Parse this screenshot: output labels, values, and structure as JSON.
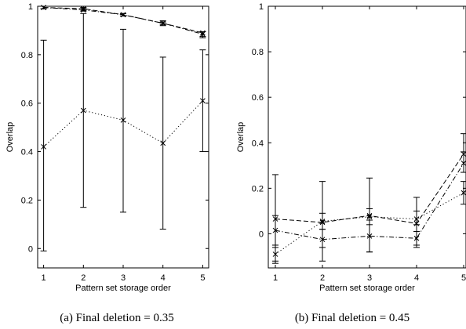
{
  "chart_data": [
    {
      "type": "line",
      "caption": "(a) Final deletion = 0.35",
      "xlabel": "Pattern set storage order",
      "ylabel": "Overlap",
      "xlim": [
        0.85,
        5.15
      ],
      "ylim": [
        -0.08,
        1.0
      ],
      "xticks": [
        1,
        2,
        3,
        4,
        5
      ],
      "yticks": [
        0,
        0.2,
        0.4,
        0.6,
        0.8,
        1
      ],
      "ytick_labels": [
        "0",
        "0.2",
        "0.4",
        "0.6",
        "0.8",
        "1"
      ],
      "grid": false,
      "x": [
        1,
        2,
        3,
        4,
        5
      ],
      "series": [
        {
          "style": "dotted",
          "marker": "x",
          "values": [
            0.42,
            0.57,
            0.53,
            0.435,
            0.61
          ],
          "err_low": [
            -0.01,
            0.17,
            0.15,
            0.08,
            0.4
          ],
          "err_high": [
            0.86,
            0.97,
            0.905,
            0.79,
            0.82
          ]
        },
        {
          "style": "dashed",
          "marker": "x",
          "values": [
            0.995,
            0.99,
            0.965,
            0.93,
            0.89
          ],
          "err_low": [
            0.99,
            0.985,
            0.96,
            0.92,
            0.875
          ],
          "err_high": [
            1.0,
            0.995,
            0.97,
            0.94,
            0.895
          ]
        },
        {
          "style": "dashdot",
          "marker": "x",
          "values": [
            0.995,
            0.985,
            0.965,
            0.93,
            0.885
          ],
          "err_low": [
            0.99,
            0.98,
            0.96,
            0.925,
            0.87
          ],
          "err_high": [
            1.0,
            0.99,
            0.97,
            0.935,
            0.895
          ]
        }
      ]
    },
    {
      "type": "line",
      "caption": "(b) Final deletion = 0.45",
      "xlabel": "Pattern set storage order",
      "ylabel": "Overlap",
      "xlim": [
        0.85,
        5.05
      ],
      "ylim": [
        -0.15,
        1.0
      ],
      "xticks": [
        1,
        2,
        3,
        4,
        5
      ],
      "yticks": [
        0,
        0.2,
        0.4,
        0.6,
        0.8,
        1
      ],
      "ytick_labels": [
        "0",
        "0.2",
        "0.4",
        "0.6",
        "0.8",
        "1"
      ],
      "grid": false,
      "x": [
        1,
        2,
        3,
        4,
        5
      ],
      "series": [
        {
          "style": "dashed",
          "marker": "x",
          "values": [
            0.065,
            0.05,
            0.08,
            0.045,
            0.35
          ],
          "err_low": [
            -0.13,
            -0.12,
            -0.08,
            -0.06,
            0.27
          ],
          "err_high": [
            0.26,
            0.23,
            0.245,
            0.16,
            0.44
          ]
        },
        {
          "style": "dashdot",
          "marker": "x",
          "values": [
            0.015,
            -0.025,
            -0.01,
            -0.02,
            0.31
          ],
          "err_low": [
            -0.05,
            -0.06,
            -0.08,
            -0.05,
            0.27
          ],
          "err_high": [
            0.08,
            0.02,
            0.06,
            0.01,
            0.36
          ]
        },
        {
          "style": "dotted",
          "marker": "x",
          "values": [
            -0.09,
            0.055,
            0.075,
            0.065,
            0.18
          ],
          "err_low": [
            -0.12,
            0.02,
            0.04,
            0.04,
            0.13
          ],
          "err_high": [
            -0.06,
            0.09,
            0.11,
            0.1,
            0.23
          ]
        }
      ]
    }
  ]
}
